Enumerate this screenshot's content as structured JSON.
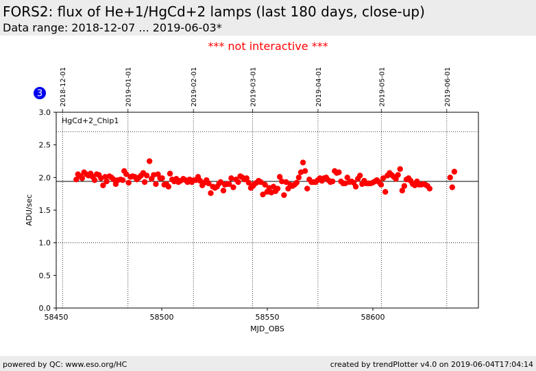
{
  "header": {
    "title": "FORS2: flux of He+1/HgCd+2 lamps (last 180 days, close-up)",
    "subtitle": "Data range: 2018-12-07 ... 2019-06-03*"
  },
  "notice": "*** not interactive ***",
  "badge": "3",
  "footer": {
    "left": "powered by QC: www.eso.org/HC",
    "right": "created by trendPlotter v4.0 on 2019-06-04T17:04:14"
  },
  "colors": {
    "points": "#ff0000",
    "notice": "#ff0000",
    "badge": "#0000ee",
    "header_bg": "#ececec"
  },
  "chart_data": {
    "type": "scatter",
    "panel_label": "HgCd+2_Chip1",
    "xlabel": "MJD_OBS",
    "ylabel": "ADU/sec",
    "xlim": [
      58450,
      58650
    ],
    "ylim": [
      0.0,
      3.0
    ],
    "x_ticks": [
      58450,
      58500,
      58550,
      58600
    ],
    "x_tick_labels": [
      "58450",
      "58500",
      "58550",
      "58600"
    ],
    "y_ticks": [
      0.0,
      0.5,
      1.0,
      1.5,
      2.0,
      2.5,
      3.0
    ],
    "y_tick_labels": [
      "0.0",
      "0.5",
      "1.0",
      "1.5",
      "2.0",
      "2.5",
      "3.0"
    ],
    "date_marks": [
      {
        "mjd": 58453,
        "label": "2018-12-01"
      },
      {
        "mjd": 58484,
        "label": "2019-01-01"
      },
      {
        "mjd": 58515,
        "label": "2019-02-01"
      },
      {
        "mjd": 58543,
        "label": "2019-03-01"
      },
      {
        "mjd": 58574,
        "label": "2019-04-01"
      },
      {
        "mjd": 58604,
        "label": "2019-05-01"
      },
      {
        "mjd": 58635,
        "label": "2019-06-01"
      }
    ],
    "reference_lines": [
      {
        "value": 1.94,
        "style": "solid"
      },
      {
        "value": 2.7,
        "style": "dotted"
      },
      {
        "value": 1.0,
        "style": "dotted"
      }
    ],
    "series": [
      {
        "points": [
          [
            58459.5,
            1.97
          ],
          [
            58460.3,
            2.05
          ],
          [
            58461.5,
            2.02
          ],
          [
            58462.3,
            1.99
          ],
          [
            58463.2,
            2.08
          ],
          [
            58464.3,
            2.05
          ],
          [
            58465.3,
            2.03
          ],
          [
            58466.3,
            2.06
          ],
          [
            58467.3,
            2.01
          ],
          [
            58468.2,
            1.96
          ],
          [
            58469.2,
            2.05
          ],
          [
            58470.2,
            2.04
          ],
          [
            58471.2,
            1.99
          ],
          [
            58472.2,
            1.88
          ],
          [
            58473.2,
            2.01
          ],
          [
            58473.9,
            1.94
          ],
          [
            58475.2,
            2.02
          ],
          [
            58476.2,
            2.0
          ],
          [
            58477.2,
            1.97
          ],
          [
            58478.2,
            1.9
          ],
          [
            58479.2,
            1.96
          ],
          [
            58480.5,
            1.97
          ],
          [
            58481.5,
            1.96
          ],
          [
            58482.2,
            2.1
          ],
          [
            58483.2,
            2.05
          ],
          [
            58484.3,
            1.92
          ],
          [
            58485.2,
            2.01
          ],
          [
            58486.2,
            2.02
          ],
          [
            58487.2,
            2.01
          ],
          [
            58488.2,
            1.97
          ],
          [
            58489.2,
            2.0
          ],
          [
            58490.2,
            2.03
          ],
          [
            58491.2,
            2.07
          ],
          [
            58491.9,
            1.93
          ],
          [
            58492.9,
            2.03
          ],
          [
            58494.2,
            2.25
          ],
          [
            58495.2,
            1.98
          ],
          [
            58496.2,
            2.04
          ],
          [
            58497.2,
            1.9
          ],
          [
            58498.2,
            2.05
          ],
          [
            58499.2,
            1.99
          ],
          [
            58500.2,
            1.99
          ],
          [
            58501.2,
            1.89
          ],
          [
            58502.2,
            1.9
          ],
          [
            58503.2,
            1.86
          ],
          [
            58503.9,
            2.06
          ],
          [
            58504.9,
            1.97
          ],
          [
            58505.9,
            1.94
          ],
          [
            58506.9,
            1.98
          ],
          [
            58507.9,
            1.93
          ],
          [
            58508.9,
            1.95
          ],
          [
            58510.2,
            1.98
          ],
          [
            58511.2,
            1.96
          ],
          [
            58512.2,
            1.93
          ],
          [
            58513.2,
            1.97
          ],
          [
            58514.2,
            1.93
          ],
          [
            58515.2,
            1.96
          ],
          [
            58516.2,
            1.96
          ],
          [
            58517.2,
            2.01
          ],
          [
            58518.2,
            1.95
          ],
          [
            58519.2,
            1.88
          ],
          [
            58520.2,
            1.92
          ],
          [
            58521.2,
            1.96
          ],
          [
            58522.2,
            1.91
          ],
          [
            58523.2,
            1.76
          ],
          [
            58524.2,
            1.86
          ],
          [
            58525.2,
            1.84
          ],
          [
            58526.2,
            1.86
          ],
          [
            58527.2,
            1.91
          ],
          [
            58527.9,
            1.93
          ],
          [
            58529.2,
            1.8
          ],
          [
            58529.9,
            1.89
          ],
          [
            58530.9,
            1.9
          ],
          [
            58531.9,
            1.9
          ],
          [
            58532.9,
            1.99
          ],
          [
            58533.9,
            1.85
          ],
          [
            58535.2,
            1.97
          ],
          [
            58536.2,
            1.93
          ],
          [
            58537.2,
            2.02
          ],
          [
            58538.2,
            2.0
          ],
          [
            58539.2,
            1.97
          ],
          [
            58540.2,
            1.99
          ],
          [
            58541.2,
            1.92
          ],
          [
            58542.2,
            1.84
          ],
          [
            58543.2,
            1.87
          ],
          [
            58543.9,
            1.9
          ],
          [
            58544.9,
            1.92
          ],
          [
            58545.9,
            1.95
          ],
          [
            58546.9,
            1.93
          ],
          [
            58547.9,
            1.74
          ],
          [
            58548.9,
            1.89
          ],
          [
            58549.9,
            1.78
          ],
          [
            58550.9,
            1.84
          ],
          [
            58551.9,
            1.77
          ],
          [
            58552.9,
            1.86
          ],
          [
            58553.9,
            1.79
          ],
          [
            58554.9,
            1.83
          ],
          [
            58555.9,
            2.01
          ],
          [
            58556.9,
            1.94
          ],
          [
            58557.9,
            1.73
          ],
          [
            58558.9,
            1.93
          ],
          [
            58559.9,
            1.83
          ],
          [
            58560.9,
            1.89
          ],
          [
            58561.9,
            1.87
          ],
          [
            58562.9,
            1.89
          ],
          [
            58563.9,
            1.92
          ],
          [
            58564.9,
            2.0
          ],
          [
            58565.9,
            2.08
          ],
          [
            58566.9,
            2.23
          ],
          [
            58567.9,
            2.1
          ],
          [
            58568.9,
            1.83
          ],
          [
            58569.9,
            1.97
          ],
          [
            58570.9,
            1.93
          ],
          [
            58571.9,
            1.93
          ],
          [
            58572.9,
            1.93
          ],
          [
            58573.9,
            1.96
          ],
          [
            58574.9,
            1.99
          ],
          [
            58575.9,
            1.95
          ],
          [
            58576.9,
            1.99
          ],
          [
            58577.9,
            2.0
          ],
          [
            58578.9,
            1.96
          ],
          [
            58579.9,
            1.93
          ],
          [
            58580.9,
            1.94
          ],
          [
            58581.9,
            2.1
          ],
          [
            58582.9,
            2.07
          ],
          [
            58583.9,
            2.08
          ],
          [
            58584.9,
            1.94
          ],
          [
            58585.9,
            1.91
          ],
          [
            58586.9,
            1.91
          ],
          [
            58587.9,
            2.0
          ],
          [
            58588.9,
            1.93
          ],
          [
            58589.9,
            1.94
          ],
          [
            58590.9,
            1.92
          ],
          [
            58591.9,
            1.86
          ],
          [
            58592.9,
            1.98
          ],
          [
            58593.9,
            2.03
          ],
          [
            58594.9,
            1.9
          ],
          [
            58595.9,
            1.95
          ],
          [
            58596.9,
            1.91
          ],
          [
            58597.9,
            1.91
          ],
          [
            58598.9,
            1.91
          ],
          [
            58599.9,
            1.92
          ],
          [
            58600.9,
            1.94
          ],
          [
            58601.9,
            1.96
          ],
          [
            58602.9,
            1.93
          ],
          [
            58603.9,
            1.89
          ],
          [
            58604.9,
            1.99
          ],
          [
            58605.9,
            1.78
          ],
          [
            58606.9,
            2.03
          ],
          [
            58607.9,
            2.07
          ],
          [
            58608.9,
            2.04
          ],
          [
            58609.9,
            2.01
          ],
          [
            58610.9,
            1.98
          ],
          [
            58611.9,
            2.04
          ],
          [
            58612.9,
            2.13
          ],
          [
            58613.9,
            1.8
          ],
          [
            58614.9,
            1.87
          ],
          [
            58615.9,
            1.97
          ],
          [
            58616.9,
            1.99
          ],
          [
            58617.9,
            1.95
          ],
          [
            58618.9,
            1.9
          ],
          [
            58619.9,
            1.88
          ],
          [
            58620.9,
            1.94
          ],
          [
            58621.9,
            1.89
          ],
          [
            58622.9,
            1.89
          ],
          [
            58623.9,
            1.9
          ],
          [
            58624.9,
            1.89
          ],
          [
            58625.9,
            1.87
          ],
          [
            58626.9,
            1.83
          ],
          [
            58636.6,
            2.0
          ],
          [
            58637.6,
            1.85
          ],
          [
            58638.6,
            2.09
          ]
        ]
      }
    ]
  }
}
